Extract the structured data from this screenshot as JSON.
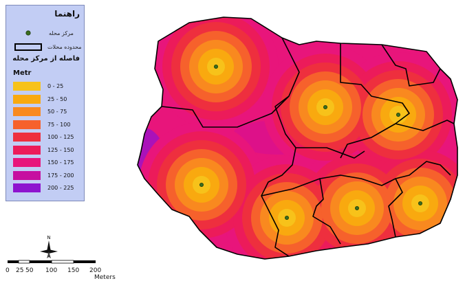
{
  "legend": {
    "title": "راهنما",
    "center_label": "مرکز محله",
    "boundary_label": "محدوده محلات",
    "distance_title": "فاصله از مرکز محله",
    "unit": "Metr",
    "classes": [
      {
        "label": "0 - 25",
        "color": "#f7c21a"
      },
      {
        "label": "25 - 50",
        "color": "#f9a90f"
      },
      {
        "label": "50 - 75",
        "color": "#f9891f"
      },
      {
        "label": "75 - 100",
        "color": "#f6612c"
      },
      {
        "label": "100 - 125",
        "color": "#ee2f3e"
      },
      {
        "label": "125 - 150",
        "color": "#ec1b5a"
      },
      {
        "label": "150 - 175",
        "color": "#e8157b"
      },
      {
        "label": "175 - 200",
        "color": "#c60fa0"
      },
      {
        "label": "200 - 225",
        "color": "#8e13cf"
      }
    ]
  },
  "map": {
    "fill_color": "#e8157b",
    "boundary_color": "#000000",
    "center_color": "#3b6e1e",
    "ring_interval_m": 25
  },
  "north_arrow": {
    "label": "N"
  },
  "scale_bar": {
    "ticks": [
      "0",
      "25",
      "50",
      "100",
      "150",
      "200"
    ],
    "unit": "Meters"
  }
}
